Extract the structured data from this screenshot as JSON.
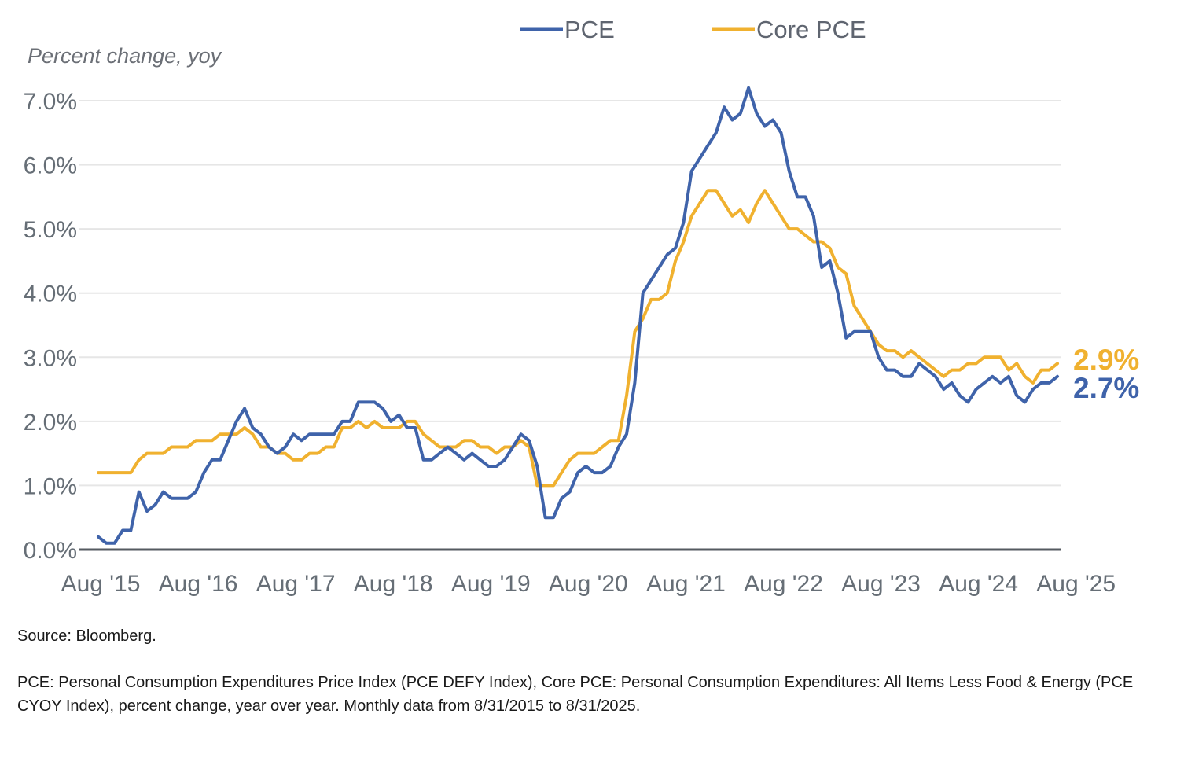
{
  "chart_data": {
    "type": "line",
    "title": "",
    "ylabel": "Percent change, yoy",
    "xlabel": "",
    "ylim": [
      0,
      7
    ],
    "yticks": [
      "0.0%",
      "1.0%",
      "2.0%",
      "3.0%",
      "4.0%",
      "5.0%",
      "6.0%",
      "7.0%"
    ],
    "xticks": [
      "Aug '15",
      "Aug '16",
      "Aug '17",
      "Aug '18",
      "Aug '19",
      "Aug '20",
      "Aug '21",
      "Aug '22",
      "Aug '23",
      "Aug '24",
      "Aug '25"
    ],
    "x_start": "Aug 2015",
    "x_end": "Aug 2025",
    "grid": "horizontal",
    "legend_position": "top",
    "series": [
      {
        "name": "PCE",
        "color": "#3f63aa",
        "end_label": "2.7%",
        "values": [
          0.2,
          0.1,
          0.1,
          0.3,
          0.3,
          0.9,
          0.6,
          0.7,
          0.9,
          0.8,
          0.8,
          0.8,
          0.9,
          1.2,
          1.4,
          1.4,
          1.7,
          2.0,
          2.2,
          1.9,
          1.8,
          1.6,
          1.5,
          1.6,
          1.8,
          1.7,
          1.8,
          1.8,
          1.8,
          1.8,
          2.0,
          2.0,
          2.3,
          2.3,
          2.3,
          2.2,
          2.0,
          2.1,
          1.9,
          1.9,
          1.4,
          1.4,
          1.5,
          1.6,
          1.5,
          1.4,
          1.5,
          1.4,
          1.3,
          1.3,
          1.4,
          1.6,
          1.8,
          1.7,
          1.3,
          0.5,
          0.5,
          0.8,
          0.9,
          1.2,
          1.3,
          1.2,
          1.2,
          1.3,
          1.6,
          1.8,
          2.6,
          4.0,
          4.2,
          4.4,
          4.6,
          4.7,
          5.1,
          5.9,
          6.1,
          6.3,
          6.5,
          6.9,
          6.7,
          6.8,
          7.2,
          6.8,
          6.6,
          6.7,
          6.5,
          5.9,
          5.5,
          5.5,
          5.2,
          4.4,
          4.5,
          4.0,
          3.3,
          3.4,
          3.4,
          3.4,
          3.0,
          2.8,
          2.8,
          2.7,
          2.7,
          2.9,
          2.8,
          2.7,
          2.5,
          2.6,
          2.4,
          2.3,
          2.5,
          2.6,
          2.7,
          2.6,
          2.7,
          2.4,
          2.3,
          2.5,
          2.6,
          2.6,
          2.7
        ]
      },
      {
        "name": "Core PCE",
        "color": "#f0b12f",
        "end_label": "2.9%",
        "values": [
          1.2,
          1.2,
          1.2,
          1.2,
          1.2,
          1.4,
          1.5,
          1.5,
          1.5,
          1.6,
          1.6,
          1.6,
          1.7,
          1.7,
          1.7,
          1.8,
          1.8,
          1.8,
          1.9,
          1.8,
          1.6,
          1.6,
          1.5,
          1.5,
          1.4,
          1.4,
          1.5,
          1.5,
          1.6,
          1.6,
          1.9,
          1.9,
          2.0,
          1.9,
          2.0,
          1.9,
          1.9,
          1.9,
          2.0,
          2.0,
          1.8,
          1.7,
          1.6,
          1.6,
          1.6,
          1.7,
          1.7,
          1.6,
          1.6,
          1.5,
          1.6,
          1.6,
          1.7,
          1.6,
          1.0,
          1.0,
          1.0,
          1.2,
          1.4,
          1.5,
          1.5,
          1.5,
          1.6,
          1.7,
          1.7,
          2.4,
          3.4,
          3.6,
          3.9,
          3.9,
          4.0,
          4.5,
          4.8,
          5.2,
          5.4,
          5.6,
          5.6,
          5.4,
          5.2,
          5.3,
          5.1,
          5.4,
          5.6,
          5.4,
          5.2,
          5.0,
          5.0,
          4.9,
          4.8,
          4.8,
          4.7,
          4.4,
          4.3,
          3.8,
          3.6,
          3.4,
          3.2,
          3.1,
          3.1,
          3.0,
          3.1,
          3.0,
          2.9,
          2.8,
          2.7,
          2.8,
          2.8,
          2.9,
          2.9,
          3.0,
          3.0,
          3.0,
          2.8,
          2.9,
          2.7,
          2.6,
          2.8,
          2.8,
          2.9
        ]
      }
    ]
  },
  "notes": {
    "source": "Source: Bloomberg.",
    "description": "PCE: Personal Consumption Expenditures Price Index (PCE DEFY Index), Core PCE: Personal Consumption Expenditures: All Items Less Food & Energy (PCE CYOY Index), percent change, year over year.  Monthly data from 8/31/2015 to 8/31/2025."
  }
}
